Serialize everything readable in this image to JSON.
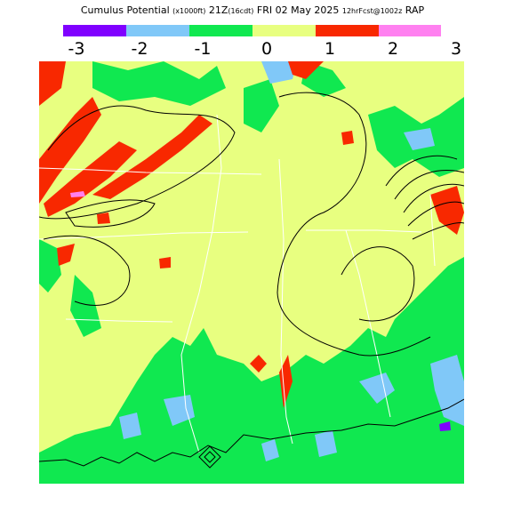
{
  "title": {
    "main": "Cumulus Potential",
    "units": "(x1000ft)",
    "valid": "21Z",
    "forecast_hour": "(16cdt)",
    "date": "FRI 02 May 2025",
    "run": "12hrFcst@1002z",
    "model": "RAP"
  },
  "legend": {
    "bins": [
      {
        "from": -3,
        "to": -2,
        "color": "#8000ff"
      },
      {
        "from": -2,
        "to": -1,
        "color": "#80c8f8"
      },
      {
        "from": -1,
        "to": 0,
        "color": "#10e850"
      },
      {
        "from": 0,
        "to": 1,
        "color": "#e8ff80"
      },
      {
        "from": 1,
        "to": 2,
        "color": "#f82800"
      },
      {
        "from": 2,
        "to": 3,
        "color": "#ff80f0"
      }
    ],
    "ticks": [
      "-3",
      "-2",
      "-1",
      "0",
      "1",
      "2",
      "3"
    ]
  },
  "map": {
    "background_color": "#e8ff80",
    "contour_color": "#000000",
    "boundary_color": "#ffffff"
  }
}
